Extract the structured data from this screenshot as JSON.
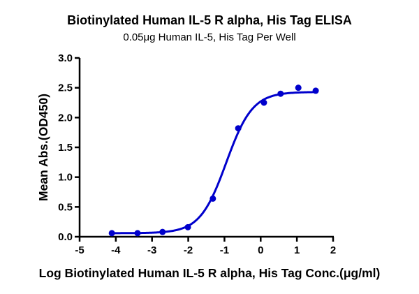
{
  "chart_data": {
    "type": "scatter",
    "title": "Biotinylated Human IL-5 R alpha, His Tag ELISA",
    "subtitle": "0.05μg Human IL-5, His Tag Per Well",
    "xlabel": "Log Biotinylated Human IL-5 R alpha, His Tag Conc.(μg/ml)",
    "ylabel": "Mean Abs.(OD450)",
    "xlim": [
      -5,
      2
    ],
    "ylim": [
      0,
      3.0
    ],
    "xticks": [
      "-5",
      "-4",
      "-3",
      "-2",
      "-1",
      "0",
      "1",
      "2"
    ],
    "yticks": [
      "0.0",
      "0.5",
      "1.0",
      "1.5",
      "2.0",
      "2.5",
      "3.0"
    ],
    "grid": false,
    "legend": null,
    "series": [
      {
        "name": "Biotinylated Human IL-5 R alpha, His Tag",
        "color": "#0000CC",
        "fit": "4-parameter logistic (sigmoidal)",
        "x": [
          -4.11,
          -3.4,
          -2.71,
          -2.01,
          -1.32,
          -0.62,
          0.09,
          0.55,
          1.04,
          1.52
        ],
        "y": [
          0.06,
          0.06,
          0.08,
          0.16,
          0.64,
          1.82,
          2.25,
          2.4,
          2.5,
          2.45
        ]
      }
    ],
    "fit_params": {
      "bottom": 0.06,
      "top": 2.43,
      "logEC50": -0.95,
      "hill": 1.2
    }
  }
}
